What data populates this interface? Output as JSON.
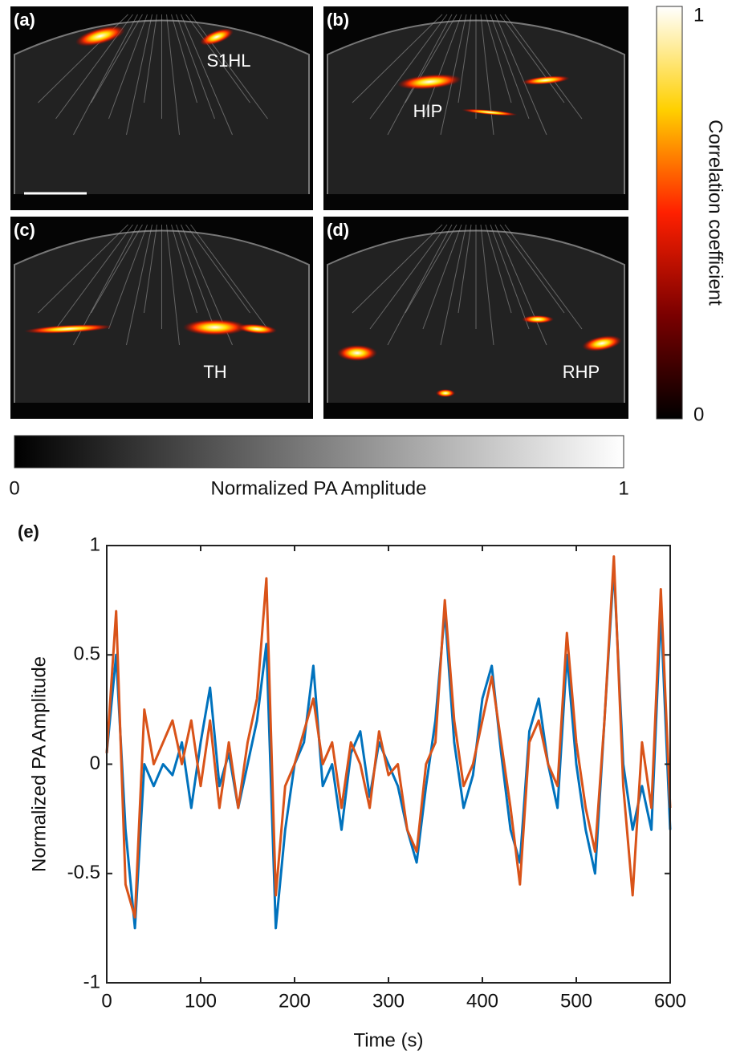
{
  "panels": [
    {
      "label": "(a)",
      "region": "S1HL"
    },
    {
      "label": "(b)",
      "region": "HIP"
    },
    {
      "label": "(c)",
      "region": "TH"
    },
    {
      "label": "(d)",
      "region": "RHP"
    }
  ],
  "chart_data": [
    {
      "type": "colorbar",
      "orientation": "vertical",
      "title": "Correlation coefficient",
      "ylim": [
        0,
        1
      ],
      "yticks": [
        0,
        1
      ],
      "colors": [
        "#000000",
        "#7a0000",
        "#ff2000",
        "#ffd000",
        "#ffffff"
      ]
    },
    {
      "type": "colorbar",
      "orientation": "horizontal",
      "title": "Normalized PA  Amplitude",
      "xlim": [
        0,
        1
      ],
      "xticks": [
        0,
        1
      ],
      "colors": [
        "#000000",
        "#ffffff"
      ]
    },
    {
      "type": "line",
      "label": "(e)",
      "xlabel": "Time (s)",
      "ylabel": "Normalized PA Amplitude",
      "xlim": [
        0,
        600
      ],
      "xticks": [
        0,
        100,
        200,
        300,
        400,
        500,
        600
      ],
      "ylim": [
        -1,
        1
      ],
      "yticks": [
        -1,
        -0.5,
        0,
        0.5,
        1
      ],
      "x": [
        0,
        10,
        20,
        30,
        40,
        50,
        60,
        70,
        80,
        90,
        100,
        110,
        120,
        130,
        140,
        150,
        160,
        170,
        180,
        190,
        200,
        210,
        220,
        230,
        240,
        250,
        260,
        270,
        280,
        290,
        300,
        310,
        320,
        330,
        340,
        350,
        360,
        370,
        380,
        390,
        400,
        410,
        420,
        430,
        440,
        450,
        460,
        470,
        480,
        490,
        500,
        510,
        520,
        530,
        540,
        550,
        560,
        570,
        580,
        590,
        600
      ],
      "series": [
        {
          "color": "#0072bd",
          "values": [
            0.05,
            0.5,
            -0.3,
            -0.75,
            0.0,
            -0.1,
            0.0,
            -0.05,
            0.1,
            -0.2,
            0.1,
            0.35,
            -0.1,
            0.05,
            -0.2,
            0.0,
            0.2,
            0.55,
            -0.75,
            -0.3,
            0.0,
            0.1,
            0.45,
            -0.1,
            0.0,
            -0.3,
            0.05,
            0.15,
            -0.15,
            0.1,
            0.0,
            -0.1,
            -0.3,
            -0.45,
            -0.1,
            0.2,
            0.7,
            0.1,
            -0.2,
            -0.05,
            0.3,
            0.45,
            0.05,
            -0.3,
            -0.45,
            0.15,
            0.3,
            0.0,
            -0.2,
            0.5,
            0.0,
            -0.3,
            -0.5,
            0.2,
            0.9,
            0.0,
            -0.3,
            -0.1,
            -0.3,
            0.7,
            -0.3
          ]
        },
        {
          "color": "#d95319",
          "values": [
            0.05,
            0.7,
            -0.55,
            -0.7,
            0.25,
            0.0,
            0.1,
            0.2,
            0.0,
            0.2,
            -0.1,
            0.2,
            -0.2,
            0.1,
            -0.2,
            0.1,
            0.3,
            0.85,
            -0.6,
            -0.1,
            0.0,
            0.15,
            0.3,
            0.0,
            0.1,
            -0.2,
            0.1,
            0.0,
            -0.2,
            0.15,
            -0.05,
            0.0,
            -0.3,
            -0.4,
            0.0,
            0.1,
            0.75,
            0.2,
            -0.1,
            0.0,
            0.2,
            0.4,
            0.1,
            -0.2,
            -0.55,
            0.1,
            0.2,
            0.0,
            -0.1,
            0.6,
            0.1,
            -0.2,
            -0.4,
            0.2,
            0.95,
            -0.1,
            -0.6,
            0.1,
            -0.2,
            0.8,
            -0.2
          ]
        }
      ]
    }
  ]
}
